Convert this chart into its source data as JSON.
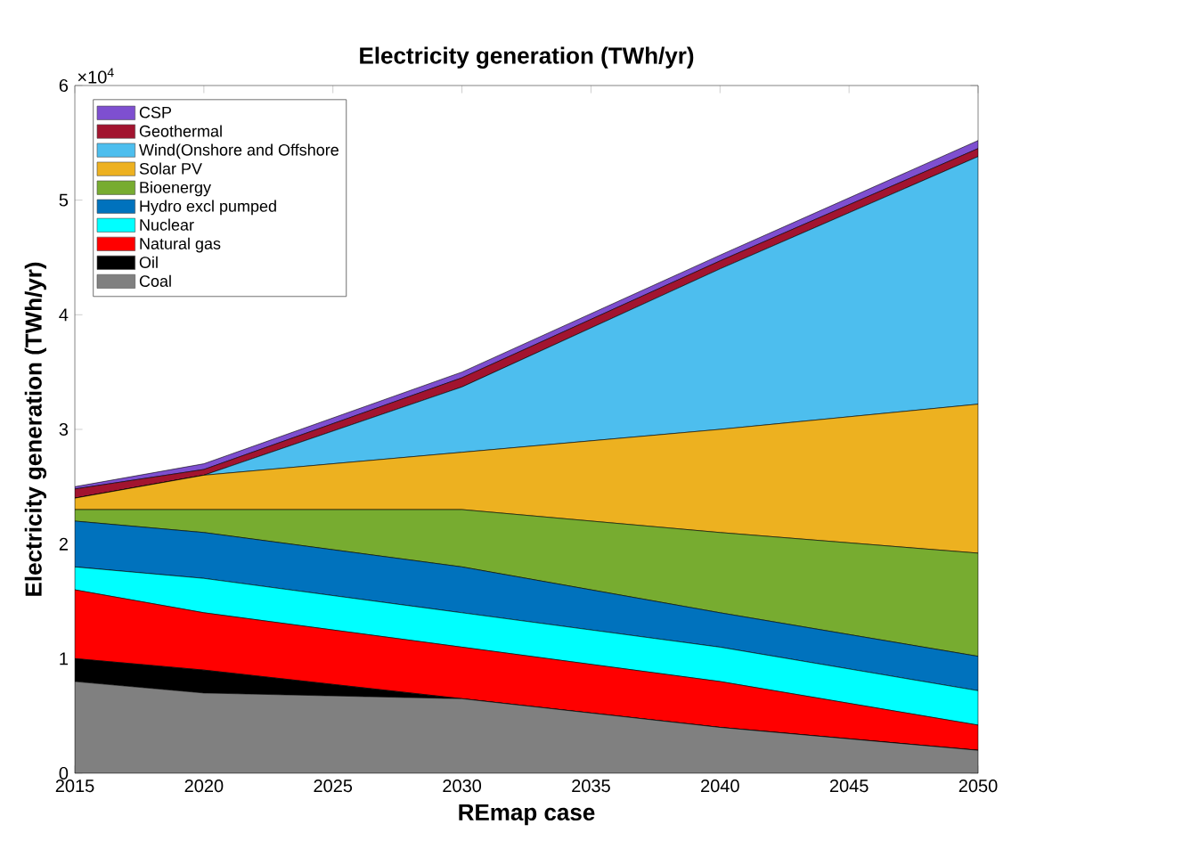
{
  "chart_data": {
    "type": "area",
    "stacked": true,
    "title": "Electricity generation (TWh/yr)",
    "xlabel": "REmap case",
    "ylabel": "Electricity generation (TWh/yr)",
    "annotations": [
      "×10$^{4}$"
    ],
    "x": [
      2015,
      2020,
      2030,
      2040,
      2050
    ],
    "xlim": [
      2015,
      2050
    ],
    "xticks": [
      2015,
      2020,
      2025,
      2030,
      2035,
      2040,
      2045,
      2050
    ],
    "ylim": [
      0,
      6
    ],
    "yticks": [
      0,
      1,
      2,
      3,
      4,
      5,
      6
    ],
    "legend": "top left",
    "series": [
      {
        "name": "Coal",
        "color": "#808080",
        "values": [
          0.8,
          0.7,
          0.65,
          0.4,
          0.2
        ]
      },
      {
        "name": "Oil",
        "color": "#000000",
        "values": [
          0.2,
          0.2,
          0,
          0,
          0
        ]
      },
      {
        "name": "Natural gas",
        "color": "#ff0000",
        "values": [
          0.6,
          0.5,
          0.45,
          0.4,
          0.22
        ]
      },
      {
        "name": "Nuclear",
        "color": "#00ffff",
        "values": [
          0.2,
          0.3,
          0.3,
          0.3,
          0.3
        ]
      },
      {
        "name": "Hydro excl pumped",
        "color": "#0072bd",
        "values": [
          0.4,
          0.4,
          0.4,
          0.3,
          0.3
        ]
      },
      {
        "name": "Bioenergy",
        "color": "#77ac30",
        "values": [
          0.1,
          0.2,
          0.5,
          0.7,
          0.9
        ]
      },
      {
        "name": "Solar PV",
        "color": "#edb120",
        "values": [
          0.1,
          0.3,
          0.5,
          0.9,
          1.3
        ]
      },
      {
        "name": "Wind(Onshore and Offshore",
        "color": "#4dbeee",
        "values": [
          0,
          0,
          0.57,
          1.4,
          2.16
        ]
      },
      {
        "name": "Geothermal",
        "color": "#a2142f",
        "values": [
          0.08,
          0.05,
          0.08,
          0.07,
          0.07
        ]
      },
      {
        "name": "CSP",
        "color": "#7e4fd0",
        "values": [
          0.02,
          0.05,
          0.05,
          0.05,
          0.07
        ]
      }
    ]
  }
}
